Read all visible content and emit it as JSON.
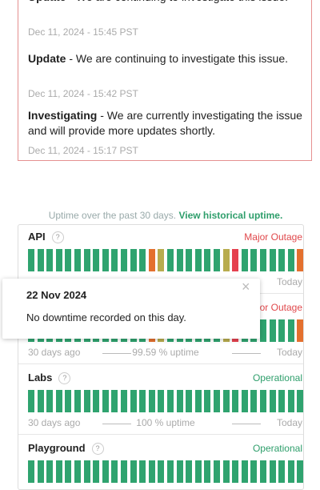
{
  "incidents": [
    {
      "status": "Update",
      "message": " - We are continuing to investigate this issue.",
      "date": "Dec 11, 2024 - 15:45 PST"
    },
    {
      "status": "Update",
      "message": " - We are continuing to investigate this issue.",
      "date": "Dec 11, 2024 - 15:42 PST"
    },
    {
      "status": "Investigating",
      "message": " - We are currently investigating the issue and will provide more updates shortly.",
      "date": "Dec 11, 2024 - 15:17 PST"
    }
  ],
  "uptime_note": {
    "text": "Uptime over the past 30 days.",
    "link": "View historical uptime."
  },
  "components": [
    {
      "name": "API",
      "help": "?",
      "status": "Major Outage",
      "status_color": "#e0484b",
      "bar_colors": [
        "#2fa36f",
        "#2fa36f",
        "#2fa36f",
        "#2fa36f",
        "#2fa36f",
        "#2fa36f",
        "#2fa36f",
        "#2fa36f",
        "#2fa36f",
        "#2fa36f",
        "#2fa36f",
        "#2fa36f",
        "#2fa36f",
        "#e4702e",
        "#b8ac4e",
        "#2fa36f",
        "#2fa36f",
        "#2fa36f",
        "#2fa36f",
        "#2fa36f",
        "#2fa36f",
        "#b8ac4e",
        "#e5414f",
        "#2fa36f",
        "#2fa36f",
        "#2fa36f",
        "#2fa36f",
        "#2fa36f",
        "#2fa36f",
        "#e4702e"
      ],
      "footer": {
        "right": "Today"
      }
    },
    {
      "status": "Major Outage",
      "status_color": "#e0484b",
      "bar_colors": [
        "#2fa36f",
        "#2fa36f",
        "#2fa36f",
        "#2fa36f",
        "#2fa36f",
        "#2fa36f",
        "#2fa36f",
        "#2fa36f",
        "#2fa36f",
        "#2fa36f",
        "#2fa36f",
        "#2fa36f",
        "#2fa36f",
        "#e4702e",
        "#b8ac4e",
        "#2fa36f",
        "#2fa36f",
        "#2fa36f",
        "#2fa36f",
        "#2fa36f",
        "#2fa36f",
        "#b8ac4e",
        "#e5414f",
        "#2fa36f",
        "#2fa36f",
        "#2fa36f",
        "#2fa36f",
        "#2fa36f",
        "#2fa36f",
        "#e4702e"
      ],
      "footer": {
        "left": "30 days ago",
        "middle": "99.59 % uptime",
        "right": "Today"
      }
    },
    {
      "name": "Labs",
      "help": "?",
      "status": "Operational",
      "status_color": "#2e9e6b",
      "bar_colors": [
        "#2fa36f",
        "#2fa36f",
        "#2fa36f",
        "#2fa36f",
        "#2fa36f",
        "#2fa36f",
        "#2fa36f",
        "#2fa36f",
        "#2fa36f",
        "#2fa36f",
        "#2fa36f",
        "#2fa36f",
        "#2fa36f",
        "#2fa36f",
        "#2fa36f",
        "#2fa36f",
        "#2fa36f",
        "#2fa36f",
        "#2fa36f",
        "#2fa36f",
        "#2fa36f",
        "#2fa36f",
        "#2fa36f",
        "#2fa36f",
        "#2fa36f",
        "#2fa36f",
        "#2fa36f",
        "#2fa36f",
        "#2fa36f",
        "#2fa36f"
      ],
      "footer": {
        "left": "30 days ago",
        "middle": "100 % uptime",
        "right": "Today"
      }
    },
    {
      "name": "Playground",
      "help": "?",
      "status": "Operational",
      "status_color": "#2e9e6b",
      "bar_colors": [
        "#2fa36f",
        "#2fa36f",
        "#2fa36f",
        "#2fa36f",
        "#2fa36f",
        "#2fa36f",
        "#2fa36f",
        "#2fa36f",
        "#2fa36f",
        "#2fa36f",
        "#2fa36f",
        "#2fa36f",
        "#2fa36f",
        "#2fa36f",
        "#2fa36f",
        "#2fa36f",
        "#2fa36f",
        "#2fa36f",
        "#2fa36f",
        "#2fa36f",
        "#2fa36f",
        "#2fa36f",
        "#2fa36f",
        "#2fa36f",
        "#2fa36f",
        "#2fa36f",
        "#2fa36f",
        "#2fa36f",
        "#2fa36f",
        "#2fa36f"
      ]
    }
  ],
  "tooltip": {
    "date": "22 Nov 2024",
    "message": "No downtime recorded on this day.",
    "close": "×"
  }
}
